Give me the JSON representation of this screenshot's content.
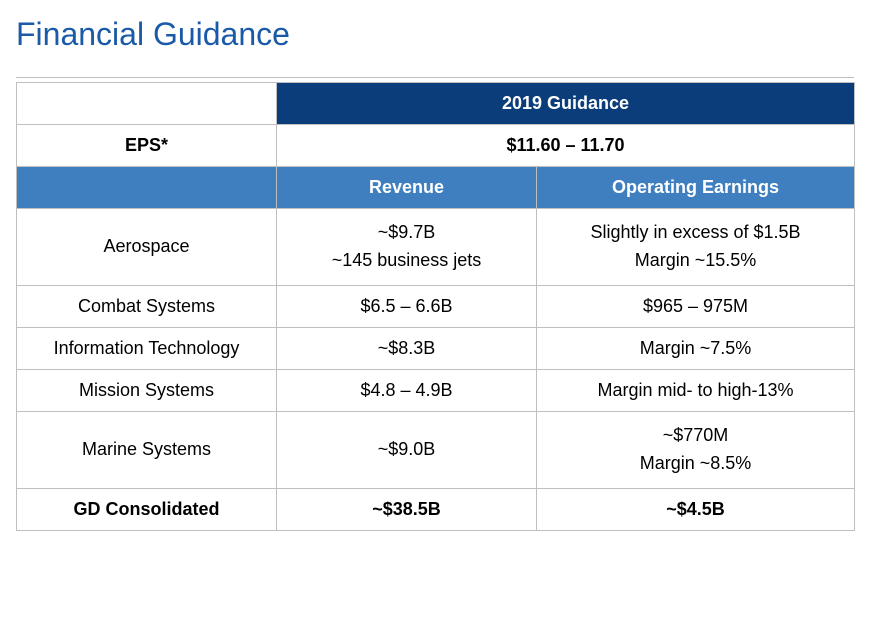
{
  "title": "Financial Guidance",
  "title_color": "#1a5aa8",
  "table": {
    "colors": {
      "dark_header_bg": "#0a3d7a",
      "mid_header_bg": "#3f7fbf",
      "header_text": "#ffffff",
      "border": "#bfbfbf",
      "body_text": "#000000"
    },
    "header_period": "2019 Guidance",
    "eps": {
      "label": "EPS*",
      "value": "$11.60 – 11.70"
    },
    "subheaders": {
      "revenue": "Revenue",
      "operating_earnings": "Operating Earnings"
    },
    "segments": [
      {
        "name": "Aerospace",
        "revenue_line1": "~$9.7B",
        "revenue_line2": "~145 business jets",
        "oe_line1": "Slightly in excess of $1.5B",
        "oe_line2": "Margin ~15.5%"
      },
      {
        "name": "Combat Systems",
        "revenue_line1": "$6.5 – 6.6B",
        "revenue_line2": "",
        "oe_line1": "$965 – 975M",
        "oe_line2": ""
      },
      {
        "name": "Information Technology",
        "revenue_line1": "~$8.3B",
        "revenue_line2": "",
        "oe_line1": "Margin ~7.5%",
        "oe_line2": ""
      },
      {
        "name": "Mission Systems",
        "revenue_line1": "$4.8 – 4.9B",
        "revenue_line2": "",
        "oe_line1": "Margin mid- to high-13%",
        "oe_line2": ""
      },
      {
        "name": "Marine Systems",
        "revenue_line1": "~$9.0B",
        "revenue_line2": "",
        "oe_line1": "~$770M",
        "oe_line2": "Margin ~8.5%"
      }
    ],
    "consolidated": {
      "label": "GD Consolidated",
      "revenue": "~$38.5B",
      "operating_earnings": "~$4.5B"
    }
  }
}
